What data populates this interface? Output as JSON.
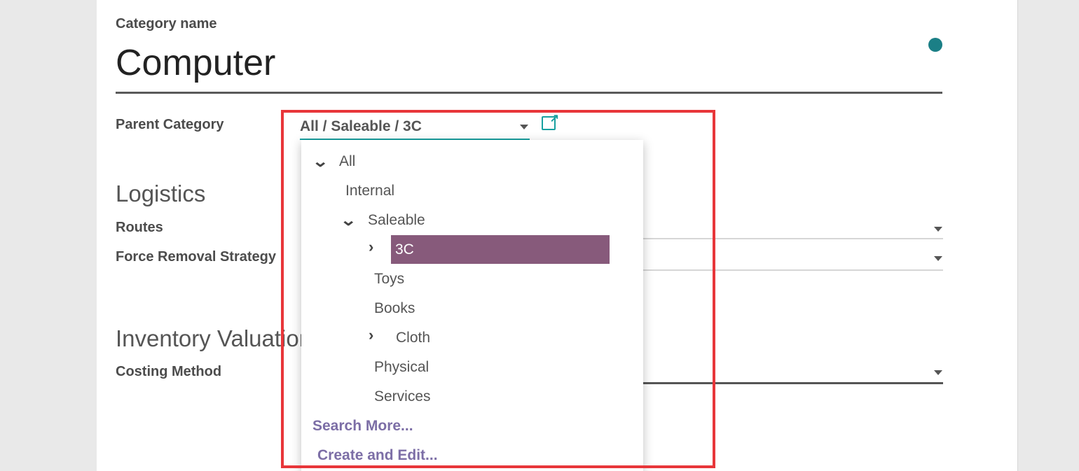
{
  "form": {
    "category_name_label": "Category name",
    "category_name": "Computer",
    "parent_category_label": "Parent Category",
    "parent_category_value": "All / Saleable / 3C",
    "logistics_heading": "Logistics",
    "routes_label": "Routes",
    "removal_label": "Force Removal Strategy",
    "valuation_heading": "Inventory Valuation",
    "costing_label": "Costing Method"
  },
  "dropdown": {
    "items": [
      {
        "label": "All",
        "expander": "chevron-down"
      },
      {
        "label": "Internal"
      },
      {
        "label": "Saleable",
        "expander": "chevron-down"
      },
      {
        "label": "3C",
        "expander": "chevron-right",
        "highlighted": true
      },
      {
        "label": "Toys"
      },
      {
        "label": "Books"
      },
      {
        "label": "Cloth",
        "expander": "chevron-right"
      },
      {
        "label": "Physical"
      },
      {
        "label": "Services"
      }
    ],
    "search_more": "Search More...",
    "create_edit": "Create and Edit..."
  },
  "colors": {
    "accent": "#875a7b",
    "link": "#7c6ea6",
    "teal": "#18a0a0",
    "highlight_box": "#e8363a"
  }
}
